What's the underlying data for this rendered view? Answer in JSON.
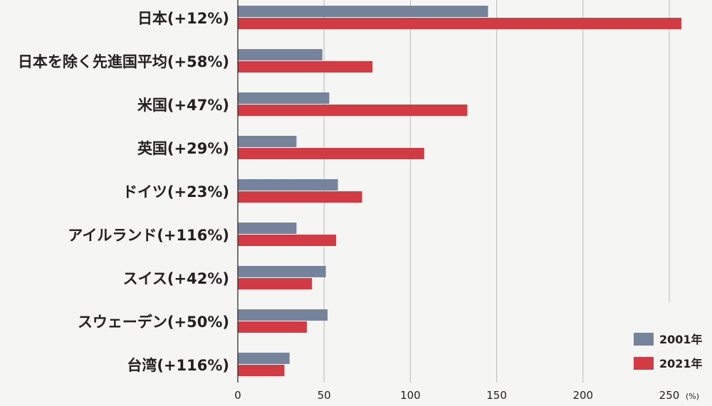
{
  "chart_data": {
    "type": "bar",
    "orientation": "horizontal",
    "categories": [
      "日本(+12%)",
      "日本を除く先進国平均(+58%)",
      "米国(+47%)",
      "英国(+29%)",
      "ドイツ(+23%)",
      "アイルランド(+116%)",
      "スイス(+42%)",
      "スウェーデン(+50%)",
      "台湾(+116%)"
    ],
    "series": [
      {
        "name": "2001年",
        "color": "#75849a",
        "values": [
          145,
          49,
          53,
          34,
          58,
          34,
          51,
          52,
          30
        ]
      },
      {
        "name": "2021年",
        "color": "#d23a44",
        "values": [
          257,
          78,
          133,
          108,
          72,
          57,
          43,
          40,
          27
        ]
      }
    ],
    "xlim": [
      0,
      250
    ],
    "xticks": [
      0,
      50,
      100,
      150,
      200,
      250
    ],
    "unit": "(%)",
    "grid": true,
    "legend_position": "bottom-right"
  }
}
